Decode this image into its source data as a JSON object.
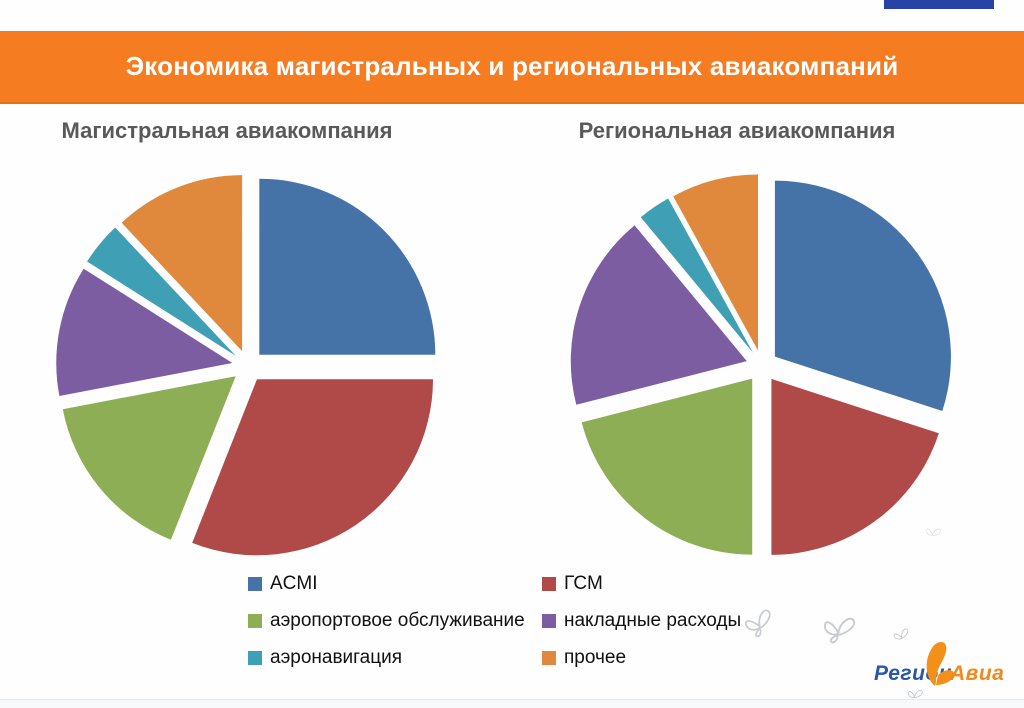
{
  "slide": {
    "title": "Экономика магистральных и региональных авиакомпаний",
    "banner_color": "#f57c20",
    "banner_text_color": "#ffffff",
    "corner_tab_color": "#2942a6",
    "background_color": "#fefefe"
  },
  "chart_data": [
    {
      "type": "pie",
      "title": "Магистральная авиакомпания",
      "labels": [
        "ACMI",
        "ГСМ",
        "аэропортовое обслуживание",
        "накладные расходы",
        "аэронавигация",
        "прочее"
      ],
      "values_percent": [
        25,
        31,
        16,
        12,
        4,
        12
      ],
      "colors": [
        "#4573a7",
        "#af4a48",
        "#8dae54",
        "#7c5da2",
        "#3f9fb4",
        "#e0883c"
      ],
      "style": "exploded",
      "start_angle_deg": 0,
      "direction": "clockwise",
      "data_labels": false,
      "legend_position": "bottom-shared"
    },
    {
      "type": "pie",
      "title": "Региональная авиакомпания",
      "labels": [
        "ACMI",
        "ГСМ",
        "аэропортовое обслуживание",
        "накладные расходы",
        "аэронавигация",
        "прочее"
      ],
      "values_percent": [
        30,
        20,
        21,
        18,
        3,
        8
      ],
      "colors": [
        "#4573a7",
        "#af4a48",
        "#8dae54",
        "#7c5da2",
        "#3f9fb4",
        "#e0883c"
      ],
      "style": "exploded",
      "start_angle_deg": 0,
      "direction": "clockwise",
      "data_labels": false,
      "legend_position": "bottom-shared"
    }
  ],
  "legend": {
    "items": [
      {
        "label": "ACMI",
        "color": "#4573a7"
      },
      {
        "label": "ГСМ",
        "color": "#af4a48"
      },
      {
        "label": "аэропортовое обслуживание",
        "color": "#8dae54"
      },
      {
        "label": "накладные расходы",
        "color": "#7c5da2"
      },
      {
        "label": "аэронавигация",
        "color": "#3f9fb4"
      },
      {
        "label": "прочее",
        "color": "#e0883c"
      }
    ],
    "columns": 2,
    "text_color": "#111111"
  },
  "logo": {
    "part1": "Регион",
    "part2": "Авиа",
    "part1_color": "#2b56a8",
    "part2_color": "#f0891e",
    "butterfly_color": "#f39019"
  },
  "decor": {
    "watermark_icon": "butterfly-icon",
    "watermark_stroke": "#c8cbd0"
  }
}
